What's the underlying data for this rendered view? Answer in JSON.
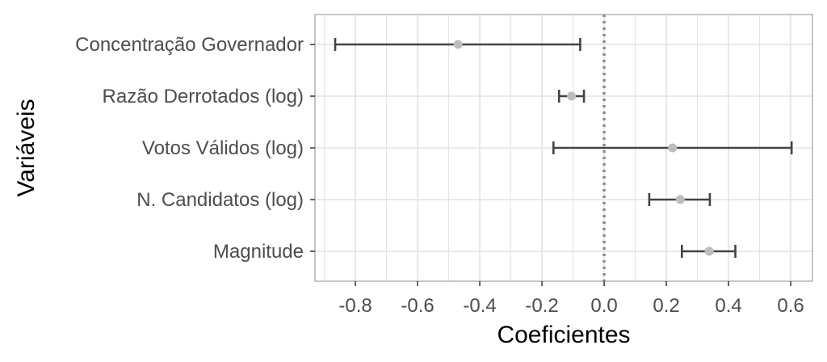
{
  "chart_data": {
    "type": "scatter",
    "subtype": "coefficient-plot",
    "xlabel": "Coeficientes",
    "ylabel": "Variáveis",
    "xlim": [
      -0.93,
      0.67
    ],
    "x_ticks": [
      -0.8,
      -0.6,
      -0.4,
      -0.2,
      0.0,
      0.2,
      0.4,
      0.6
    ],
    "x_tick_labels": [
      "-0.8",
      "-0.6",
      "-0.4",
      "-0.2",
      "0.0",
      "0.2",
      "0.4",
      "0.6"
    ],
    "reference_line": {
      "x": 0,
      "style": "dotted"
    },
    "grid": true,
    "categories": [
      "Concentração Governador",
      "Razão Derrotados (log)",
      "Votos Válidos (log)",
      "N. Candidatos (log)",
      "Magnitude"
    ],
    "estimates": [
      -0.47,
      -0.105,
      0.22,
      0.245,
      0.338
    ],
    "ci_low": [
      -0.865,
      -0.145,
      -0.163,
      0.145,
      0.25
    ],
    "ci_high": [
      -0.077,
      -0.065,
      0.603,
      0.34,
      0.422
    ],
    "colors": {
      "point": "#bdbdbd",
      "errorbar": "#444444",
      "grid": "#e3e3e3",
      "panel_border": "#b3b3b3",
      "reference_line": "#8c8c8c"
    }
  }
}
